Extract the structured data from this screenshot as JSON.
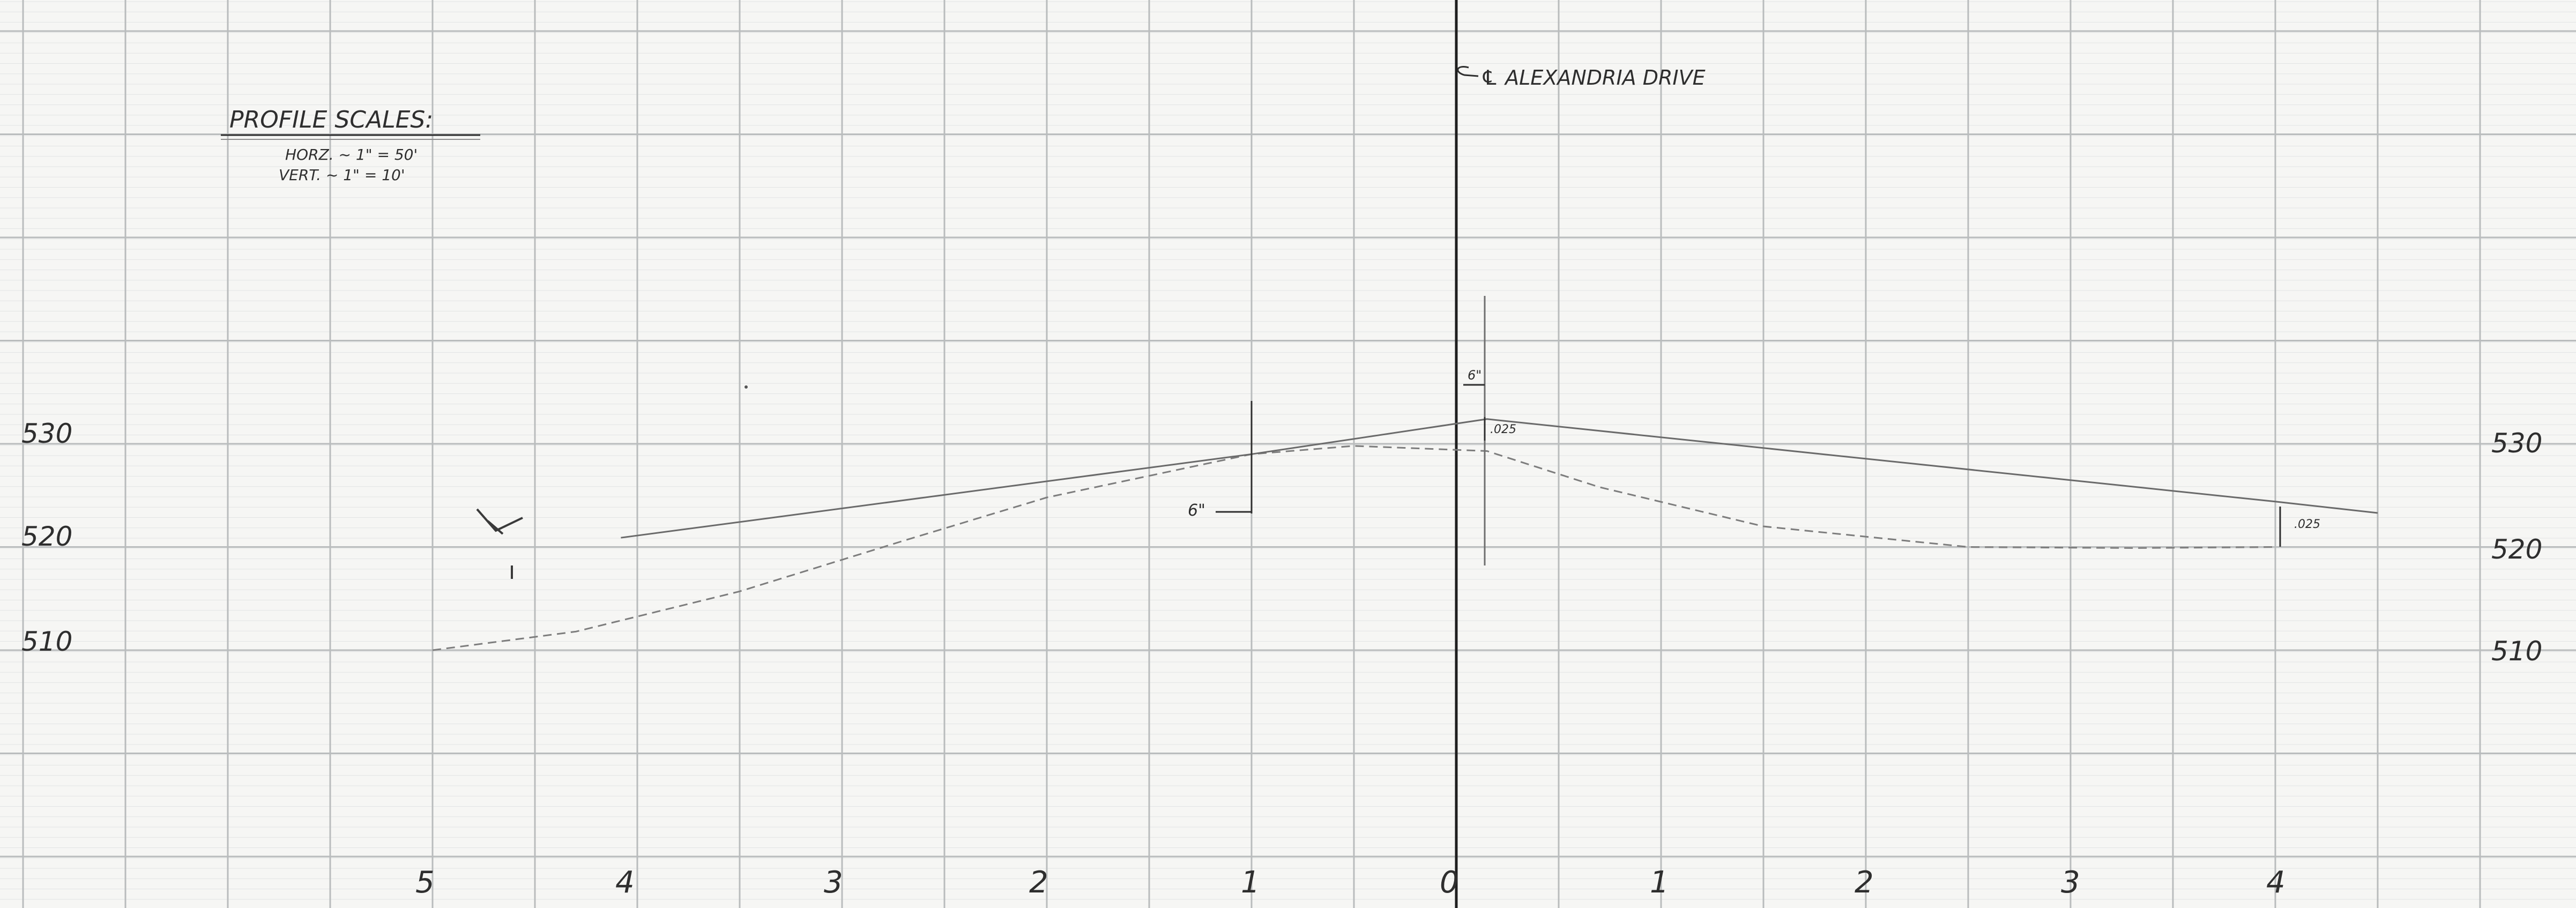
{
  "title_block": {
    "heading": "PROFILE SCALES:",
    "horizontal_scale": "HORZ. ~ 1\" = 50'",
    "vertical_scale": "VERT. ~ 1\" = 10'"
  },
  "centerline_label": "℄ ALEXANDRIA DRIVE",
  "elevation_labels_left": [
    "530",
    "520",
    "510"
  ],
  "elevation_labels_right": [
    "530",
    "520",
    "510"
  ],
  "station_labels": [
    "5",
    "4",
    "3",
    "2",
    "1",
    "0",
    "1",
    "2",
    "3",
    "4"
  ],
  "annotations": {
    "crown_offset": "6\"",
    "crown_value": ".025",
    "left_offset": "6\"",
    "right_value": ".025"
  },
  "profiles": {
    "proposed_grade": {
      "style": "solid",
      "points": [
        {
          "station": -4.08,
          "elevation": 520.9
        },
        {
          "station": -1.0,
          "elevation": 529.0
        },
        {
          "station": 0.15,
          "elevation": 532.4
        },
        {
          "station": 4.0,
          "elevation": 524.4
        },
        {
          "station": 4.5,
          "elevation": 523.3
        }
      ]
    },
    "existing_ground": {
      "style": "dashed",
      "points": [
        {
          "station": -5.0,
          "elevation": 510.0
        },
        {
          "station": -4.3,
          "elevation": 511.8
        },
        {
          "station": -3.5,
          "elevation": 515.7
        },
        {
          "station": -2.7,
          "elevation": 520.6
        },
        {
          "station": -2.0,
          "elevation": 524.8
        },
        {
          "station": -1.0,
          "elevation": 529.0
        },
        {
          "station": -0.5,
          "elevation": 529.8
        },
        {
          "station": 0.15,
          "elevation": 529.3
        },
        {
          "station": 0.7,
          "elevation": 525.8
        },
        {
          "station": 1.5,
          "elevation": 522.0
        },
        {
          "station": 2.5,
          "elevation": 520.0
        },
        {
          "station": 3.3,
          "elevation": 519.9
        },
        {
          "station": 4.0,
          "elevation": 520.0
        }
      ]
    }
  },
  "colors": {
    "paper": "#f6f6f4",
    "grid_major": "#b9bcbd",
    "grid_minor": "#e2e4e4",
    "ink": "#2e2e2e",
    "profile_line": "#7d7d7d"
  }
}
